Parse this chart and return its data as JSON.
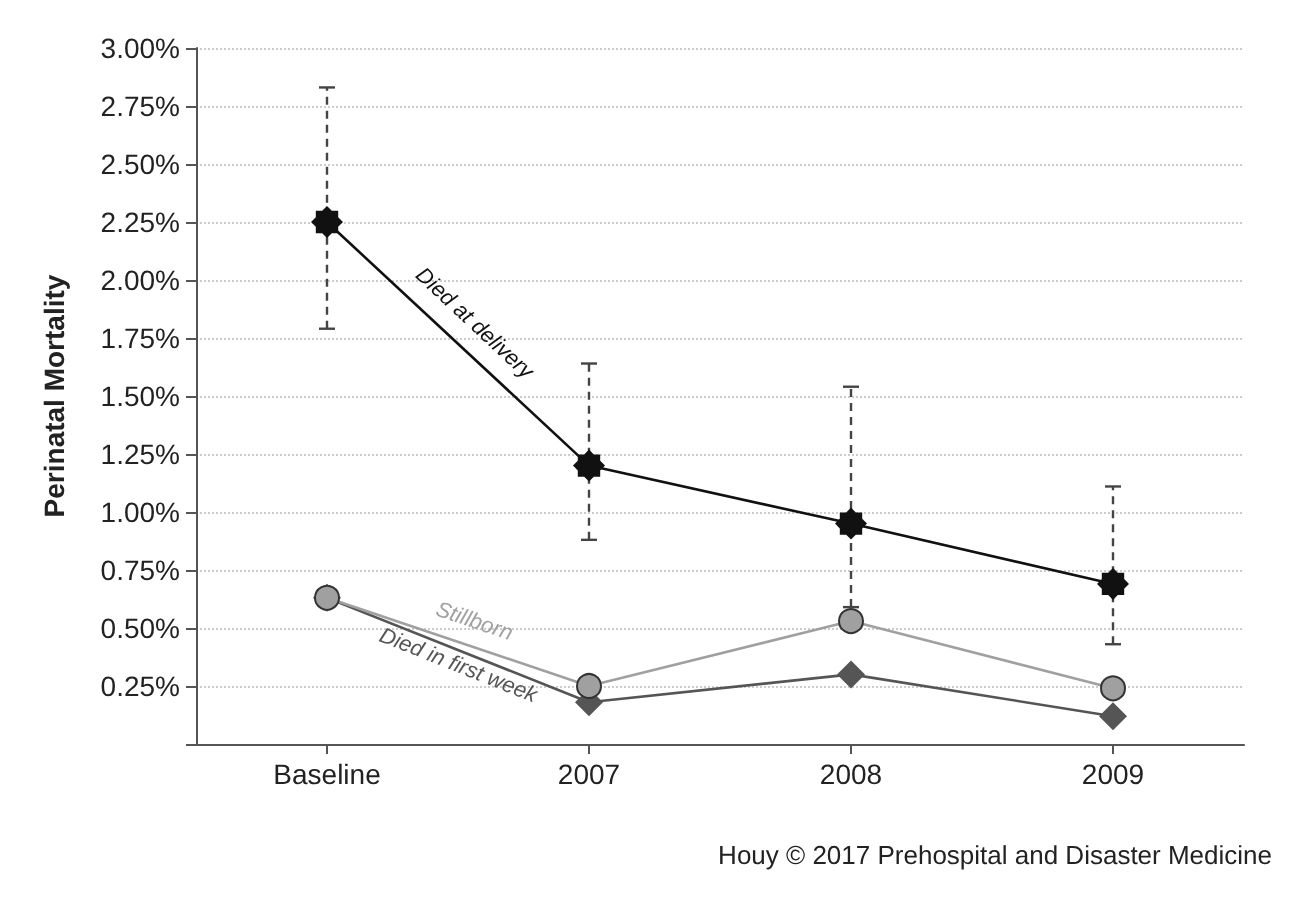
{
  "chart_data": {
    "type": "line",
    "ylabel": "Perinatal Mortality",
    "categories": [
      "Baseline",
      "2007",
      "2008",
      "2009"
    ],
    "series": [
      {
        "name": "Died at delivery",
        "color": "#111111",
        "marker": "star",
        "values": [
          2.25,
          1.2,
          0.95,
          0.69
        ],
        "errors": [
          [
            1.79,
            2.83
          ],
          [
            0.88,
            1.64
          ],
          [
            0.59,
            1.54
          ],
          [
            0.43,
            1.11
          ]
        ]
      },
      {
        "name": "Stillborn",
        "color": "#a0a0a0",
        "marker": "circle",
        "values": [
          0.63,
          0.25,
          0.53,
          0.24
        ]
      },
      {
        "name": "Died in first week",
        "color": "#555555",
        "marker": "diamond",
        "values": [
          0.63,
          0.18,
          0.3,
          0.12
        ]
      }
    ],
    "ylim": [
      0,
      3
    ],
    "yticks": [
      {
        "value": 0,
        "label": null
      },
      {
        "value": 0.25,
        "label": "0.25%"
      },
      {
        "value": 0.5,
        "label": "0.50%"
      },
      {
        "value": 0.75,
        "label": "0.75%"
      },
      {
        "value": 1,
        "label": "1.00%"
      },
      {
        "value": 1.25,
        "label": "1.25%"
      },
      {
        "value": 1.5,
        "label": "1.50%"
      },
      {
        "value": 1.75,
        "label": "1.75%"
      },
      {
        "value": 2,
        "label": "2.00%"
      },
      {
        "value": 2.25,
        "label": "2.25%"
      },
      {
        "value": 2.5,
        "label": "2.50%"
      },
      {
        "value": 2.75,
        "label": "2.75%"
      },
      {
        "value": 3,
        "label": "3.00%"
      }
    ],
    "grid": "y",
    "legend": false,
    "line_style": "solid",
    "annotations": [
      "Houy © 2017 Prehospital and Disaster Medicine"
    ]
  }
}
